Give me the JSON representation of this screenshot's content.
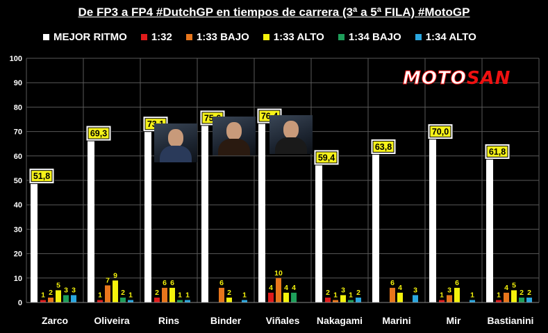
{
  "title": "De FP3 a FP4 #DutchGP en tiempos de carrera (3ª a 5ª FILA) #MotoGP",
  "logo": {
    "part1": "MOTO",
    "part2": "SAN"
  },
  "colors": {
    "best": "#ffffff",
    "t132": "#e01b1b",
    "t133b": "#e8761c",
    "t133a": "#f4f20c",
    "t134b": "#1e9e5a",
    "t134a": "#2aa7e0",
    "label_bg": "#f6f21a"
  },
  "legend": [
    {
      "label": "MEJOR RITMO",
      "color": "#ffffff"
    },
    {
      "label": "1:32",
      "color": "#e01b1b"
    },
    {
      "label": "1:33 BAJO",
      "color": "#e8761c"
    },
    {
      "label": "1:33 ALTO",
      "color": "#f4f20c"
    },
    {
      "label": "1:34 BAJO",
      "color": "#1e9e5a"
    },
    {
      "label": "1:34 ALTO",
      "color": "#2aa7e0"
    }
  ],
  "chart_data": {
    "type": "bar",
    "categories": [
      "Zarco",
      "Oliveira",
      "Rins",
      "Binder",
      "Viñales",
      "Nakagami",
      "Marini",
      "Mir",
      "Bastianini"
    ],
    "ylim": [
      0,
      100
    ],
    "yticks": [
      0,
      10,
      20,
      30,
      40,
      50,
      60,
      70,
      80,
      90,
      100
    ],
    "grid": true,
    "legend_position": "top",
    "best_labels": [
      "51,8",
      "69,3",
      "73,1",
      "75,6",
      "76,4",
      "59,4",
      "63,8",
      "70,0",
      "61,8"
    ],
    "series": [
      {
        "name": "MEJOR RITMO",
        "values": [
          51.8,
          69.3,
          73.1,
          75.6,
          76.4,
          59.4,
          63.8,
          70.0,
          61.8
        ]
      },
      {
        "name": "1:32",
        "values": [
          1,
          1,
          2,
          0,
          4,
          2,
          0,
          1,
          1
        ]
      },
      {
        "name": "1:33 BAJO",
        "values": [
          2,
          7,
          6,
          6,
          10,
          1,
          6,
          3,
          4
        ]
      },
      {
        "name": "1:33 ALTO",
        "values": [
          5,
          9,
          6,
          2,
          4,
          3,
          4,
          6,
          5
        ]
      },
      {
        "name": "1:34 BAJO",
        "values": [
          3,
          2,
          1,
          0,
          4,
          1,
          0,
          0,
          2
        ]
      },
      {
        "name": "1:34 ALTO",
        "values": [
          3,
          1,
          1,
          1,
          0,
          2,
          3,
          1,
          2
        ]
      }
    ]
  }
}
